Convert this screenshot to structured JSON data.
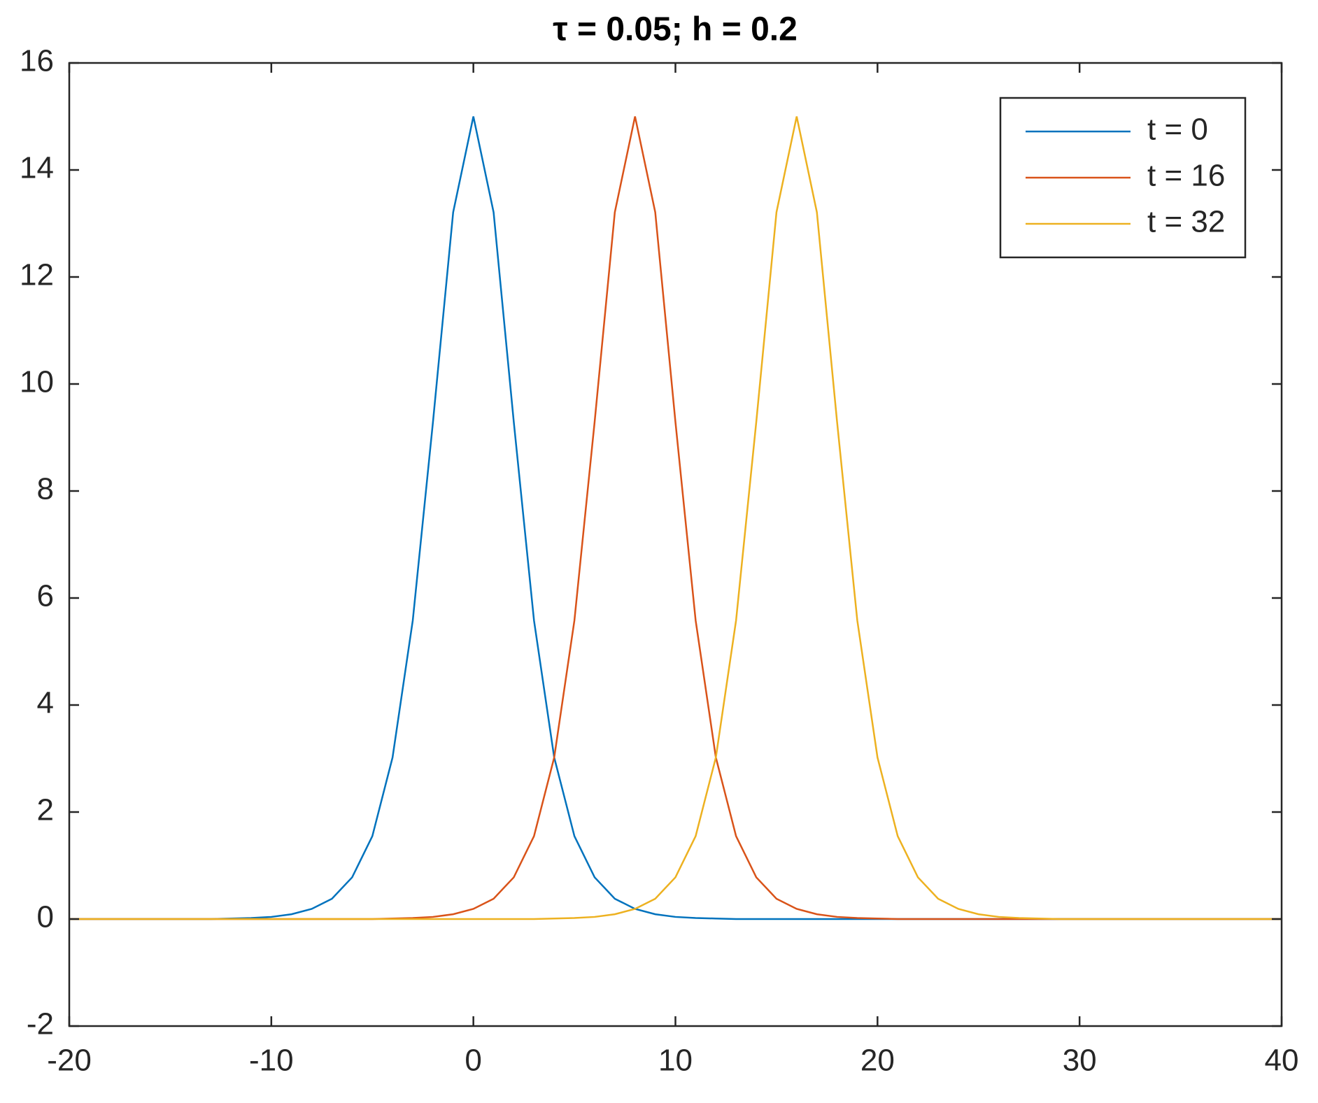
{
  "chart_data": {
    "type": "line",
    "title": "τ = 0.05; h = 0.2",
    "x": [
      -20,
      -19,
      -18,
      -17,
      -16,
      -15,
      -14,
      -13,
      -12,
      -11,
      -10,
      -9,
      -8,
      -7,
      -6,
      -5,
      -4,
      -3,
      -2,
      -1,
      0,
      1,
      2,
      3,
      4,
      5,
      6,
      7,
      8,
      9,
      10,
      11,
      12,
      13,
      14,
      15,
      16,
      17,
      18,
      19,
      20,
      21,
      22,
      23,
      24,
      25,
      26,
      27,
      28,
      29,
      30,
      31,
      32,
      33,
      34,
      35,
      36,
      37,
      38,
      39,
      40
    ],
    "series": [
      {
        "name": "t = 0",
        "color": "#0072BD",
        "values": [
          0,
          0,
          0,
          0,
          0,
          0,
          0,
          0,
          0.01,
          0.02,
          0.04,
          0.09,
          0.19,
          0.38,
          0.78,
          1.55,
          3.02,
          5.58,
          9.29,
          13.21,
          15,
          13.21,
          9.29,
          5.58,
          3.02,
          1.55,
          0.78,
          0.38,
          0.19,
          0.09,
          0.04,
          0.02,
          0.01,
          0,
          0,
          0,
          0,
          0,
          0,
          0,
          0,
          0,
          0,
          0,
          0,
          0,
          0,
          0,
          0,
          0,
          0,
          0,
          0,
          0,
          0,
          0,
          0,
          0,
          0,
          0,
          0
        ]
      },
      {
        "name": "t = 16",
        "color": "#D95319",
        "values": [
          0,
          0,
          0,
          0,
          0,
          0,
          0,
          0,
          0,
          0,
          0,
          0,
          0,
          0,
          0,
          0,
          0.01,
          0.02,
          0.04,
          0.09,
          0.19,
          0.38,
          0.78,
          1.55,
          3.02,
          5.58,
          9.29,
          13.21,
          15,
          13.21,
          9.29,
          5.58,
          3.02,
          1.55,
          0.78,
          0.38,
          0.19,
          0.09,
          0.04,
          0.02,
          0.01,
          0,
          0,
          0,
          0,
          0,
          0,
          0,
          0,
          0,
          0,
          0,
          0,
          0,
          0,
          0,
          0,
          0,
          0,
          0,
          0
        ]
      },
      {
        "name": "t = 32",
        "color": "#EDB120",
        "values": [
          0,
          0,
          0,
          0,
          0,
          0,
          0,
          0,
          0,
          0,
          0,
          0,
          0,
          0,
          0,
          0,
          0,
          0,
          0,
          0,
          0,
          0,
          0,
          0,
          0.01,
          0.02,
          0.04,
          0.09,
          0.19,
          0.38,
          0.78,
          1.55,
          3.02,
          5.58,
          9.29,
          13.21,
          15,
          13.21,
          9.29,
          5.58,
          3.02,
          1.55,
          0.78,
          0.38,
          0.19,
          0.09,
          0.04,
          0.02,
          0.01,
          0,
          0,
          0,
          0,
          0,
          0,
          0,
          0,
          0,
          0,
          0,
          0
        ]
      }
    ],
    "xlim": [
      -20,
      40
    ],
    "xticks": [
      -20,
      -10,
      0,
      10,
      20,
      30,
      40
    ],
    "ylim": [
      -2,
      16
    ],
    "yticks": [
      -2,
      0,
      2,
      4,
      6,
      8,
      10,
      12,
      14,
      16
    ],
    "legend": "northeast"
  }
}
